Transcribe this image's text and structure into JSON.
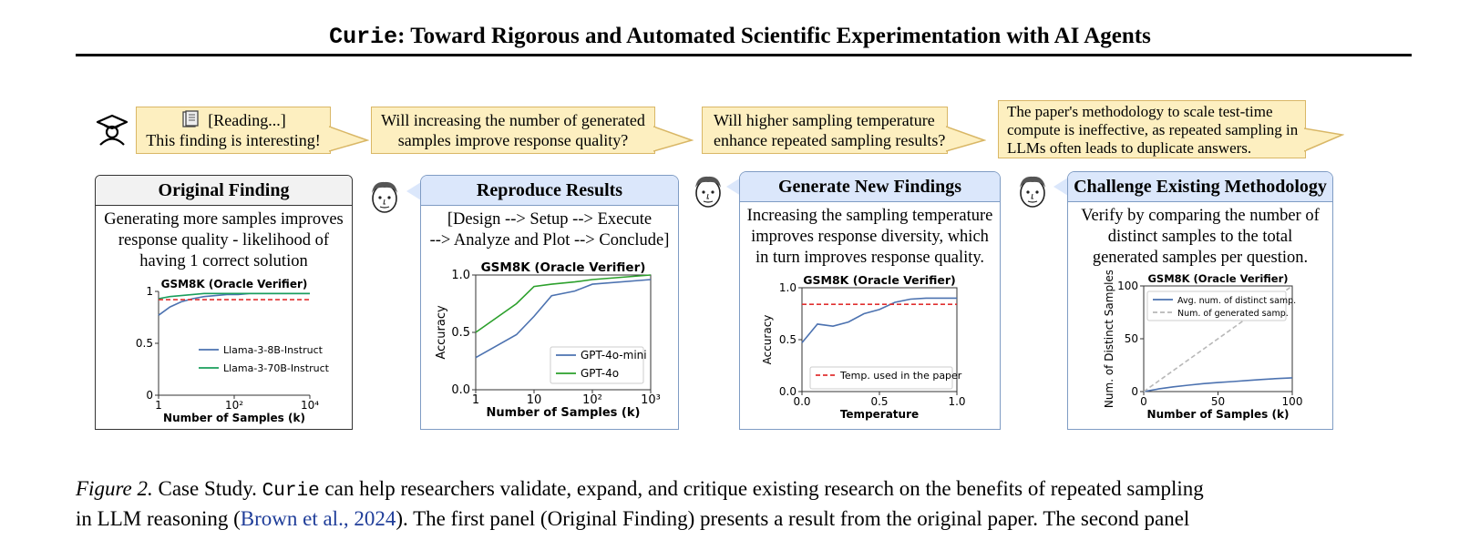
{
  "header": {
    "mono_title": "Curie",
    "title_rest": ": Toward Rigorous and Automated Scientific Experimentation with AI Agents"
  },
  "icons": {
    "student": "graduation-cap-icon",
    "reading": "book-icon",
    "researcher": "face-icon"
  },
  "bubbles": [
    {
      "line1": "[Reading...]",
      "line2": "This finding is interesting!"
    },
    {
      "line1": "Will increasing the number of generated",
      "line2": "samples improve response quality?"
    },
    {
      "line1": "Will higher sampling temperature",
      "line2": "enhance repeated sampling results?"
    },
    {
      "line1": "The paper's methodology to scale test-time",
      "line2": "compute is ineffective, as repeated sampling in",
      "line3": "LLMs often leads to duplicate answers."
    }
  ],
  "panels": [
    {
      "title": "Original Finding",
      "lines": [
        "Generating more samples improves",
        "response quality - likelihood of",
        "having 1 correct solution"
      ]
    },
    {
      "title": "Reproduce Results",
      "lines": [
        "[Design --> Setup --> Execute",
        "--> Analyze and Plot --> Conclude]"
      ]
    },
    {
      "title": "Generate New Findings",
      "lines": [
        "Increasing the sampling temperature",
        "improves response diversity, which",
        "in turn improves response quality."
      ]
    },
    {
      "title": "Challenge Existing Methodology",
      "lines": [
        "Verify by comparing the number of",
        "distinct samples to the total",
        "generated samples per question."
      ]
    }
  ],
  "chart_data": [
    {
      "type": "line",
      "title": "GSM8K (Oracle Verifier)",
      "xlabel": "Number of Samples (k)",
      "ylabel": "",
      "x_scale": "log",
      "xlim": [
        1,
        10000
      ],
      "ylim": [
        0,
        1
      ],
      "xticks": [
        "1",
        "10²",
        "10⁴"
      ],
      "yticks": [
        "0",
        "0.5",
        "1"
      ],
      "x": [
        1,
        2,
        4,
        8,
        16,
        32,
        64,
        128,
        256,
        512,
        1000,
        2000,
        5000,
        10000
      ],
      "series": [
        {
          "name": "Llama-3-8B-Instruct",
          "color": "#4c72b0",
          "values": [
            0.77,
            0.85,
            0.9,
            0.93,
            0.95,
            0.96,
            0.97,
            0.97,
            0.98,
            0.98,
            0.98,
            0.98,
            0.98,
            0.98
          ]
        },
        {
          "name": "Llama-3-70B-Instruct",
          "color": "#1a9e5c",
          "values": [
            0.93,
            0.95,
            0.96,
            0.97,
            0.98,
            0.98,
            0.98,
            0.98,
            0.98,
            0.98,
            0.98,
            0.98,
            0.98,
            0.98
          ]
        },
        {
          "name": "",
          "color": "#e03030",
          "dashed": true,
          "values": [
            0.92,
            0.92,
            0.92,
            0.92,
            0.92,
            0.92,
            0.92,
            0.92,
            0.92,
            0.92,
            0.92,
            0.92,
            0.92,
            0.92
          ]
        }
      ],
      "legend": "center-right",
      "grid": false
    },
    {
      "type": "line",
      "title": "GSM8K (Oracle Verifier)",
      "xlabel": "Number of Samples (k)",
      "ylabel": "Accuracy",
      "x_scale": "log",
      "xlim": [
        1,
        1000
      ],
      "ylim": [
        0,
        1
      ],
      "xticks": [
        "1",
        "10",
        "10²",
        "10³"
      ],
      "yticks": [
        "0.0",
        "0.5",
        "1.0"
      ],
      "x": [
        1,
        5,
        10,
        20,
        50,
        100,
        1000
      ],
      "series": [
        {
          "name": "GPT-4o-mini",
          "color": "#4c72b0",
          "values": [
            0.28,
            0.48,
            0.64,
            0.82,
            0.86,
            0.92,
            0.96
          ]
        },
        {
          "name": "GPT-4o",
          "color": "#2ca02c",
          "values": [
            0.5,
            0.75,
            0.9,
            0.92,
            0.94,
            0.96,
            1.0
          ]
        }
      ],
      "legend": "lower-right",
      "grid": false
    },
    {
      "type": "line",
      "title": "GSM8K (Oracle Verifier)",
      "xlabel": "Temperature",
      "ylabel": "Accuracy",
      "xlim": [
        0,
        1
      ],
      "ylim": [
        0,
        1
      ],
      "xticks": [
        "0.0",
        "0.5",
        "1.0"
      ],
      "yticks": [
        "0.0",
        "0.5",
        "1.0"
      ],
      "x": [
        0.0,
        0.1,
        0.2,
        0.3,
        0.4,
        0.5,
        0.6,
        0.7,
        0.8,
        0.9,
        1.0
      ],
      "series": [
        {
          "name": "",
          "color": "#4c72b0",
          "values": [
            0.47,
            0.65,
            0.63,
            0.67,
            0.75,
            0.79,
            0.86,
            0.89,
            0.9,
            0.9,
            0.9
          ]
        },
        {
          "name": "Temp. used in the paper",
          "color": "#e03030",
          "dashed": true,
          "values": [
            0.84,
            0.84,
            0.84,
            0.84,
            0.84,
            0.84,
            0.84,
            0.84,
            0.84,
            0.84,
            0.84
          ]
        }
      ],
      "legend": "lower-right",
      "grid": false
    },
    {
      "type": "line",
      "title": "GSM8K (Oracle Verifier)",
      "xlabel": "Number of Samples (k)",
      "ylabel": "Num. of Distinct Samples",
      "xlim": [
        0,
        100
      ],
      "ylim": [
        0,
        100
      ],
      "xticks": [
        "0",
        "50",
        "100"
      ],
      "yticks": [
        "0",
        "50",
        "100"
      ],
      "x": [
        0,
        10,
        20,
        30,
        40,
        50,
        60,
        70,
        80,
        90,
        100
      ],
      "series": [
        {
          "name": "Avg. num. of distinct samp.",
          "color": "#4c72b0",
          "values": [
            0,
            2.5,
            4.5,
            6,
            7.5,
            8.5,
            9.5,
            10.5,
            11.5,
            12.3,
            13
          ]
        },
        {
          "name": "Num. of generated samp.",
          "color": "#b8b8b8",
          "dashed": true,
          "values": [
            0,
            10,
            20,
            30,
            40,
            50,
            60,
            70,
            80,
            90,
            100
          ]
        }
      ],
      "legend": "upper-left",
      "grid": false
    }
  ],
  "caption": {
    "label": "Figure 2.",
    "text1": " Case Study. ",
    "mono": "Curie",
    "text2": " can help researchers validate, expand, and critique existing research on the benefits of repeated sampling",
    "line2a": "in LLM reasoning (",
    "cite": "Brown et al., 2024",
    "line2b": "). The first panel (Original Finding) presents a result from the original paper. The second panel"
  }
}
